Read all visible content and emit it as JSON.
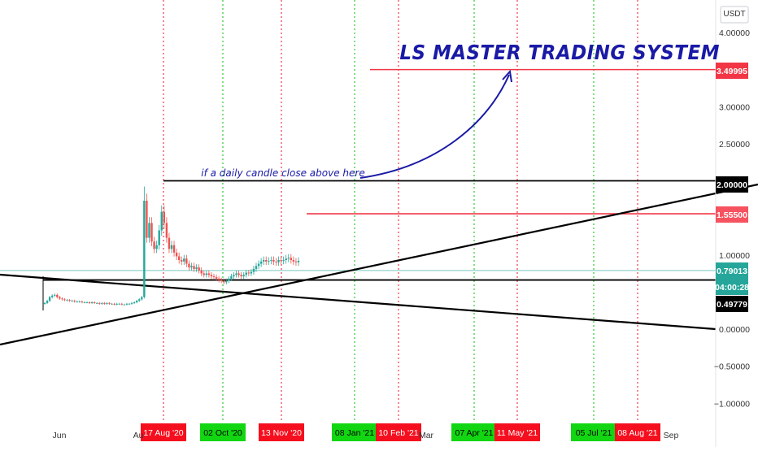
{
  "chart_data": {
    "type": "candlestick",
    "title": "LS MASTER TRADING SYSTEM",
    "annotation": "if a daily candle close above here",
    "currency": "USDT",
    "ylim": [
      -1.25,
      4.2
    ],
    "y_ticks": [
      {
        "label": "4.00000",
        "value": 4.0
      },
      {
        "label": "3.00000",
        "value": 3.0
      },
      {
        "label": "2.50000",
        "value": 2.5
      },
      {
        "label": "1.00000",
        "value": 1.0
      },
      {
        "label": "0.00000",
        "value": 0.0
      },
      {
        "label": "−0.50000",
        "value": -0.5
      },
      {
        "label": "−1.00000",
        "value": -1.0
      }
    ],
    "x_ticks": [
      "Jun",
      "Au",
      "Mar",
      "Sep"
    ],
    "price_tags": [
      {
        "label": "3.49995",
        "value": 3.49995,
        "bg": "#f23645",
        "fg": "#ffffff"
      },
      {
        "label": "2.00000",
        "value": 2.0,
        "bg": "#000000",
        "fg": "#ffffff"
      },
      {
        "label": "1.55500",
        "value": 1.555,
        "bg": "#f7525f",
        "fg": "#ffffff"
      },
      {
        "label": "0.79013",
        "value": 0.79013,
        "bg": "#26a69a",
        "fg": "#ffffff"
      },
      {
        "label": "04:00:28",
        "value": 0.6,
        "bg": "#26a69a",
        "fg": "#ffffff"
      },
      {
        "label": "0.49779",
        "value": 0.49779,
        "bg": "#000000",
        "fg": "#ffffff"
      }
    ],
    "time_markers": [
      {
        "label": "17 Aug '20",
        "color": "red"
      },
      {
        "label": "02 Oct '20",
        "color": "green"
      },
      {
        "label": "13 Nov '20",
        "color": "red"
      },
      {
        "label": "08 Jan '21",
        "color": "green"
      },
      {
        "label": "10 Feb '21",
        "color": "red"
      },
      {
        "label": "07 Apr '21",
        "color": "green"
      },
      {
        "label": "11 May '21",
        "color": "red"
      },
      {
        "label": "05 Jul '21",
        "color": "green"
      },
      {
        "label": "08 Aug '21",
        "color": "red"
      }
    ],
    "horizontal_levels": [
      {
        "value": 3.49995,
        "color": "#f23645"
      },
      {
        "value": 2.0,
        "color": "#000000"
      },
      {
        "value": 1.555,
        "color": "#f23645"
      },
      {
        "value": 0.79013,
        "color": "#26a69a"
      },
      {
        "value": 0.49779,
        "color": "#000000"
      }
    ],
    "candles_close": [
      0.22,
      0.25,
      0.3,
      0.32,
      0.33,
      0.3,
      0.28,
      0.27,
      0.26,
      0.26,
      0.25,
      0.25,
      0.24,
      0.24,
      0.24,
      0.23,
      0.23,
      0.23,
      0.22,
      0.23,
      0.22,
      0.22,
      0.21,
      0.22,
      0.21,
      0.22,
      0.21,
      0.21,
      0.2,
      0.21,
      0.21,
      0.2,
      0.2,
      0.21,
      0.21,
      0.22,
      0.23,
      0.25,
      0.27,
      0.3,
      1.6,
      1.1,
      1.3,
      1.05,
      0.95,
      1.0,
      1.2,
      1.45,
      1.3,
      1.1,
      0.95,
      1.0,
      0.9,
      0.85,
      0.8,
      0.78,
      0.82,
      0.75,
      0.7,
      0.72,
      0.68,
      0.7,
      0.66,
      0.62,
      0.6,
      0.62,
      0.6,
      0.58,
      0.57,
      0.55,
      0.53,
      0.52,
      0.5,
      0.52,
      0.55,
      0.58,
      0.6,
      0.62,
      0.6,
      0.58,
      0.6,
      0.63,
      0.62,
      0.64,
      0.68,
      0.72,
      0.75,
      0.78,
      0.8,
      0.78,
      0.79,
      0.8,
      0.78,
      0.77,
      0.8,
      0.79,
      0.8,
      0.82,
      0.83,
      0.8,
      0.78,
      0.77,
      0.79
    ]
  }
}
